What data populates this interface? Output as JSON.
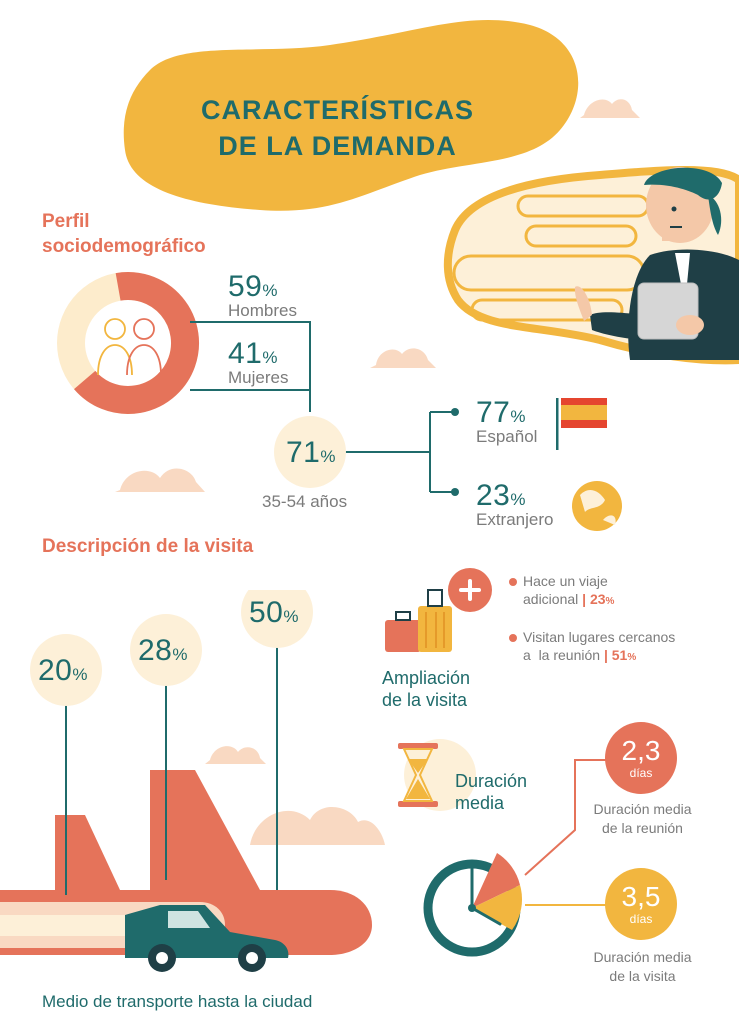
{
  "title": {
    "line1": "CARACTERÍSTICAS",
    "line2": "DE LA DEMANDA"
  },
  "profile": {
    "heading_line1": "Perfil",
    "heading_line2": "sociodemográfico",
    "men_pct": "59",
    "men_label": "Hombres",
    "women_pct": "41",
    "women_label": "Mujeres",
    "age_pct": "71",
    "age_label": "35-54 años",
    "spanish_pct": "77",
    "spanish_label": "Español",
    "foreign_pct": "23",
    "foreign_label": "Extranjero",
    "percent_sign": "%"
  },
  "visit": {
    "heading": "Descripción de la visita",
    "transport": {
      "values": [
        {
          "icon": "car-icon",
          "pct": "20"
        },
        {
          "icon": "train-icon",
          "pct": "28"
        },
        {
          "icon": "plane-icon",
          "pct": "50"
        }
      ],
      "caption": "Medio de transporte hasta la ciudad"
    },
    "extension": {
      "label_line1": "Ampliación",
      "label_line2": "de la visita",
      "bullet1_line1": "Hace un viaje",
      "bullet1_line2": "adicional",
      "bullet1_value": "23",
      "bullet2_line1": "Visitan lugares cercanos",
      "bullet2_line2": "a  la reunión",
      "bullet2_value": "51",
      "separator": "|"
    },
    "duration": {
      "label_line1": "Duración",
      "label_line2": "media",
      "meeting_value": "2,3",
      "meeting_unit": "días",
      "meeting_label_line1": "Duración media",
      "meeting_label_line2": "de la reunión",
      "visit_value": "3,5",
      "visit_unit": "días",
      "visit_label_line1": "Duración media",
      "visit_label_line2": "de la visita"
    }
  },
  "colors": {
    "teal": "#1f6b6b",
    "coral": "#e5735a",
    "yellow": "#f2b63f",
    "cream": "#fdf0d8",
    "peach": "#f9d9c2"
  }
}
